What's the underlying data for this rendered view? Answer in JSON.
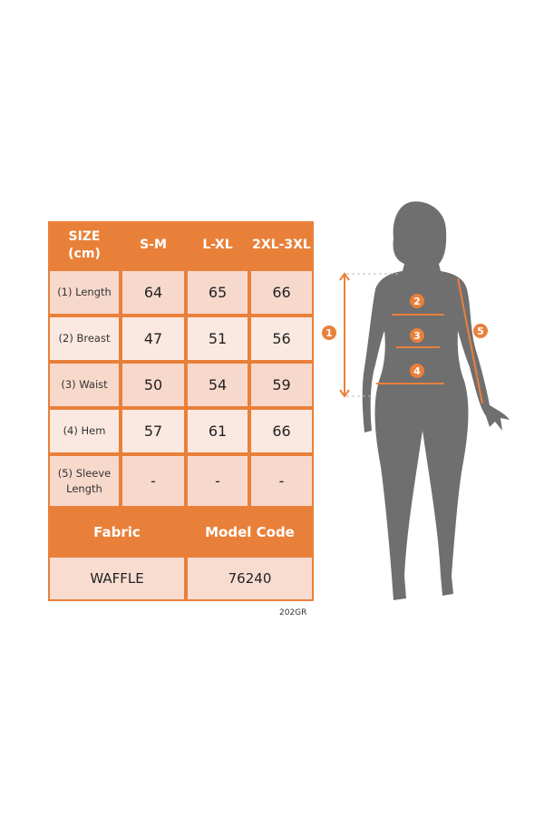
{
  "colors": {
    "accent": "#e9803a",
    "cell_light": "#fbe9e1",
    "cell_dark": "#f7d9cc",
    "silhouette": "#6f6f6f"
  },
  "table": {
    "header": [
      "SIZE (cm)",
      "S-M",
      "L-XL",
      "2XL-3XL"
    ],
    "rows": [
      {
        "label": "(1) Length",
        "values": [
          "64",
          "65",
          "66"
        ]
      },
      {
        "label": "(2) Breast",
        "values": [
          "47",
          "51",
          "56"
        ]
      },
      {
        "label": "(3) Waist",
        "values": [
          "50",
          "54",
          "59"
        ]
      },
      {
        "label": "(4) Hem",
        "values": [
          "57",
          "61",
          "66"
        ]
      },
      {
        "label": "(5) Sleeve Length",
        "values": [
          "-",
          "-",
          "-"
        ]
      }
    ],
    "fabric_label": "Fabric",
    "model_code_label": "Model Code",
    "fabric": "WAFFLE",
    "model_code": "76240"
  },
  "footer_code": "202GR",
  "figure": {
    "markers": [
      "1",
      "2",
      "3",
      "4",
      "5"
    ]
  }
}
